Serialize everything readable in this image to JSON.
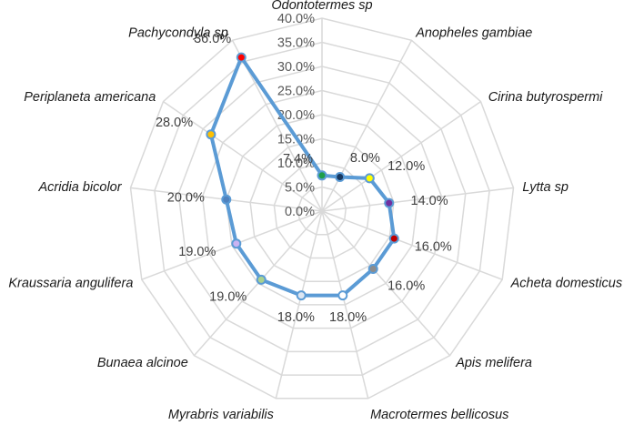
{
  "chart_data": {
    "type": "radar",
    "title": "",
    "categories": [
      "Odontotermes sp",
      "Anopheles gambiae",
      "Cirina butyrospermi",
      "Lytta sp",
      "Acheta domesticus",
      "Apis melifera",
      "Macrotermes bellicosus",
      "Myrabris variabilis",
      "Bunaea alcinoe",
      "Kraussaria angulifera",
      "Acridia bicolor",
      "Periplaneta americana",
      "Pachycondyla sp"
    ],
    "series": [
      {
        "values": [
          7.4,
          8.0,
          12.0,
          14.0,
          16.0,
          16.0,
          18.0,
          18.0,
          19.0,
          19.0,
          20.0,
          28.0,
          36.0
        ],
        "labels": [
          "7.4%",
          "8.0%",
          "12.0%",
          "14.0%",
          "16.0%",
          "16.0%",
          "18.0%",
          "18.0%",
          "19.0%",
          "19.0%",
          "20.0%",
          "28.0%",
          "36.0%"
        ],
        "line_color": "#5b9bd5",
        "marker_colors": [
          "#1e9e4a",
          "#17375e",
          "#ffff00",
          "#7030a0",
          "#c00000",
          "#8c8c8c",
          "#ffffff",
          "#dce6f2",
          "#a9d18e",
          "#c9b3f2",
          "#4f81bd",
          "#ffc000",
          "#ff0000"
        ]
      }
    ],
    "rlim": [
      0,
      40
    ],
    "ticks": [
      0,
      5,
      10,
      15,
      20,
      25,
      30,
      35,
      40
    ],
    "tick_labels": [
      "0.0%",
      "5.0%",
      "10.0%",
      "15.0%",
      "20.0%",
      "25.0%",
      "30.0%",
      "35.0%",
      "40.0%"
    ],
    "grid": true,
    "legend": "none",
    "grid_color": "#d9d9d9"
  }
}
